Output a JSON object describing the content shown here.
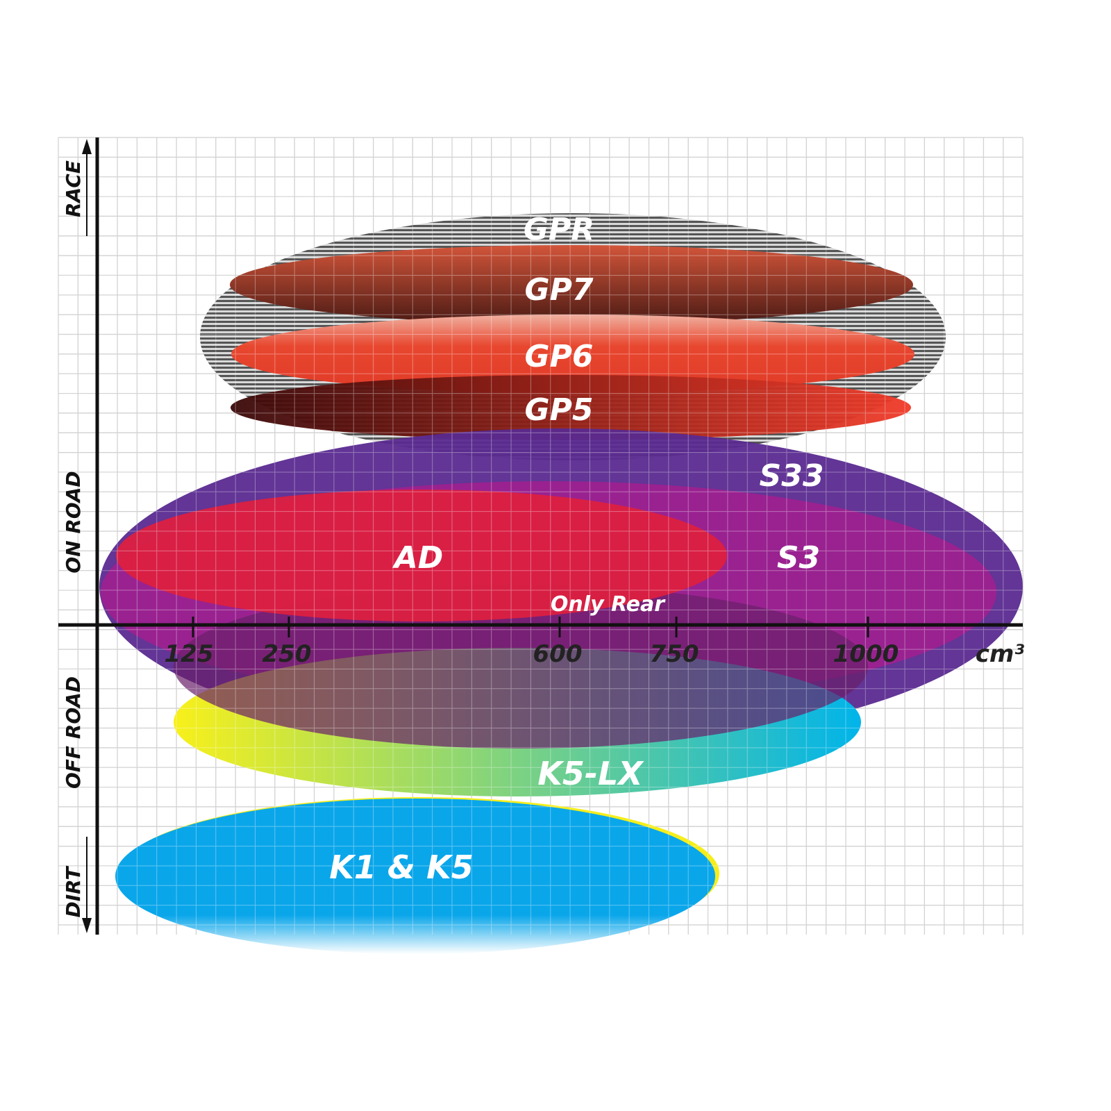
{
  "axes": {
    "y_labels": {
      "race": "RACE",
      "on_road": "ON ROAD",
      "off_road": "OFF ROAD",
      "dirt": "DIRT"
    },
    "x_ticks": [
      "125",
      "250",
      "600",
      "750",
      "1000"
    ],
    "x_unit": "cm³"
  },
  "products": {
    "gpr": "GPR",
    "gp7": "GP7",
    "gp6": "GP6",
    "gp5": "GP5",
    "s33": "S33",
    "s3": "S3",
    "ad": "AD",
    "only_rear": "Only Rear",
    "k5lx": "K5-LX",
    "k1k5": "K1 & K5"
  },
  "colors": {
    "gpr": "#8a8a8a",
    "gp7": "#a0402e",
    "gp6": "#e8472f",
    "gp5": "#8a1a10",
    "s33": "#5a2a90",
    "s3": "#a0208f",
    "ad": "#dc2040",
    "k5lx_start": "#f5ee1a",
    "k5lx_end": "#0fb5e0",
    "k1k5": "#0aa6ea"
  }
}
